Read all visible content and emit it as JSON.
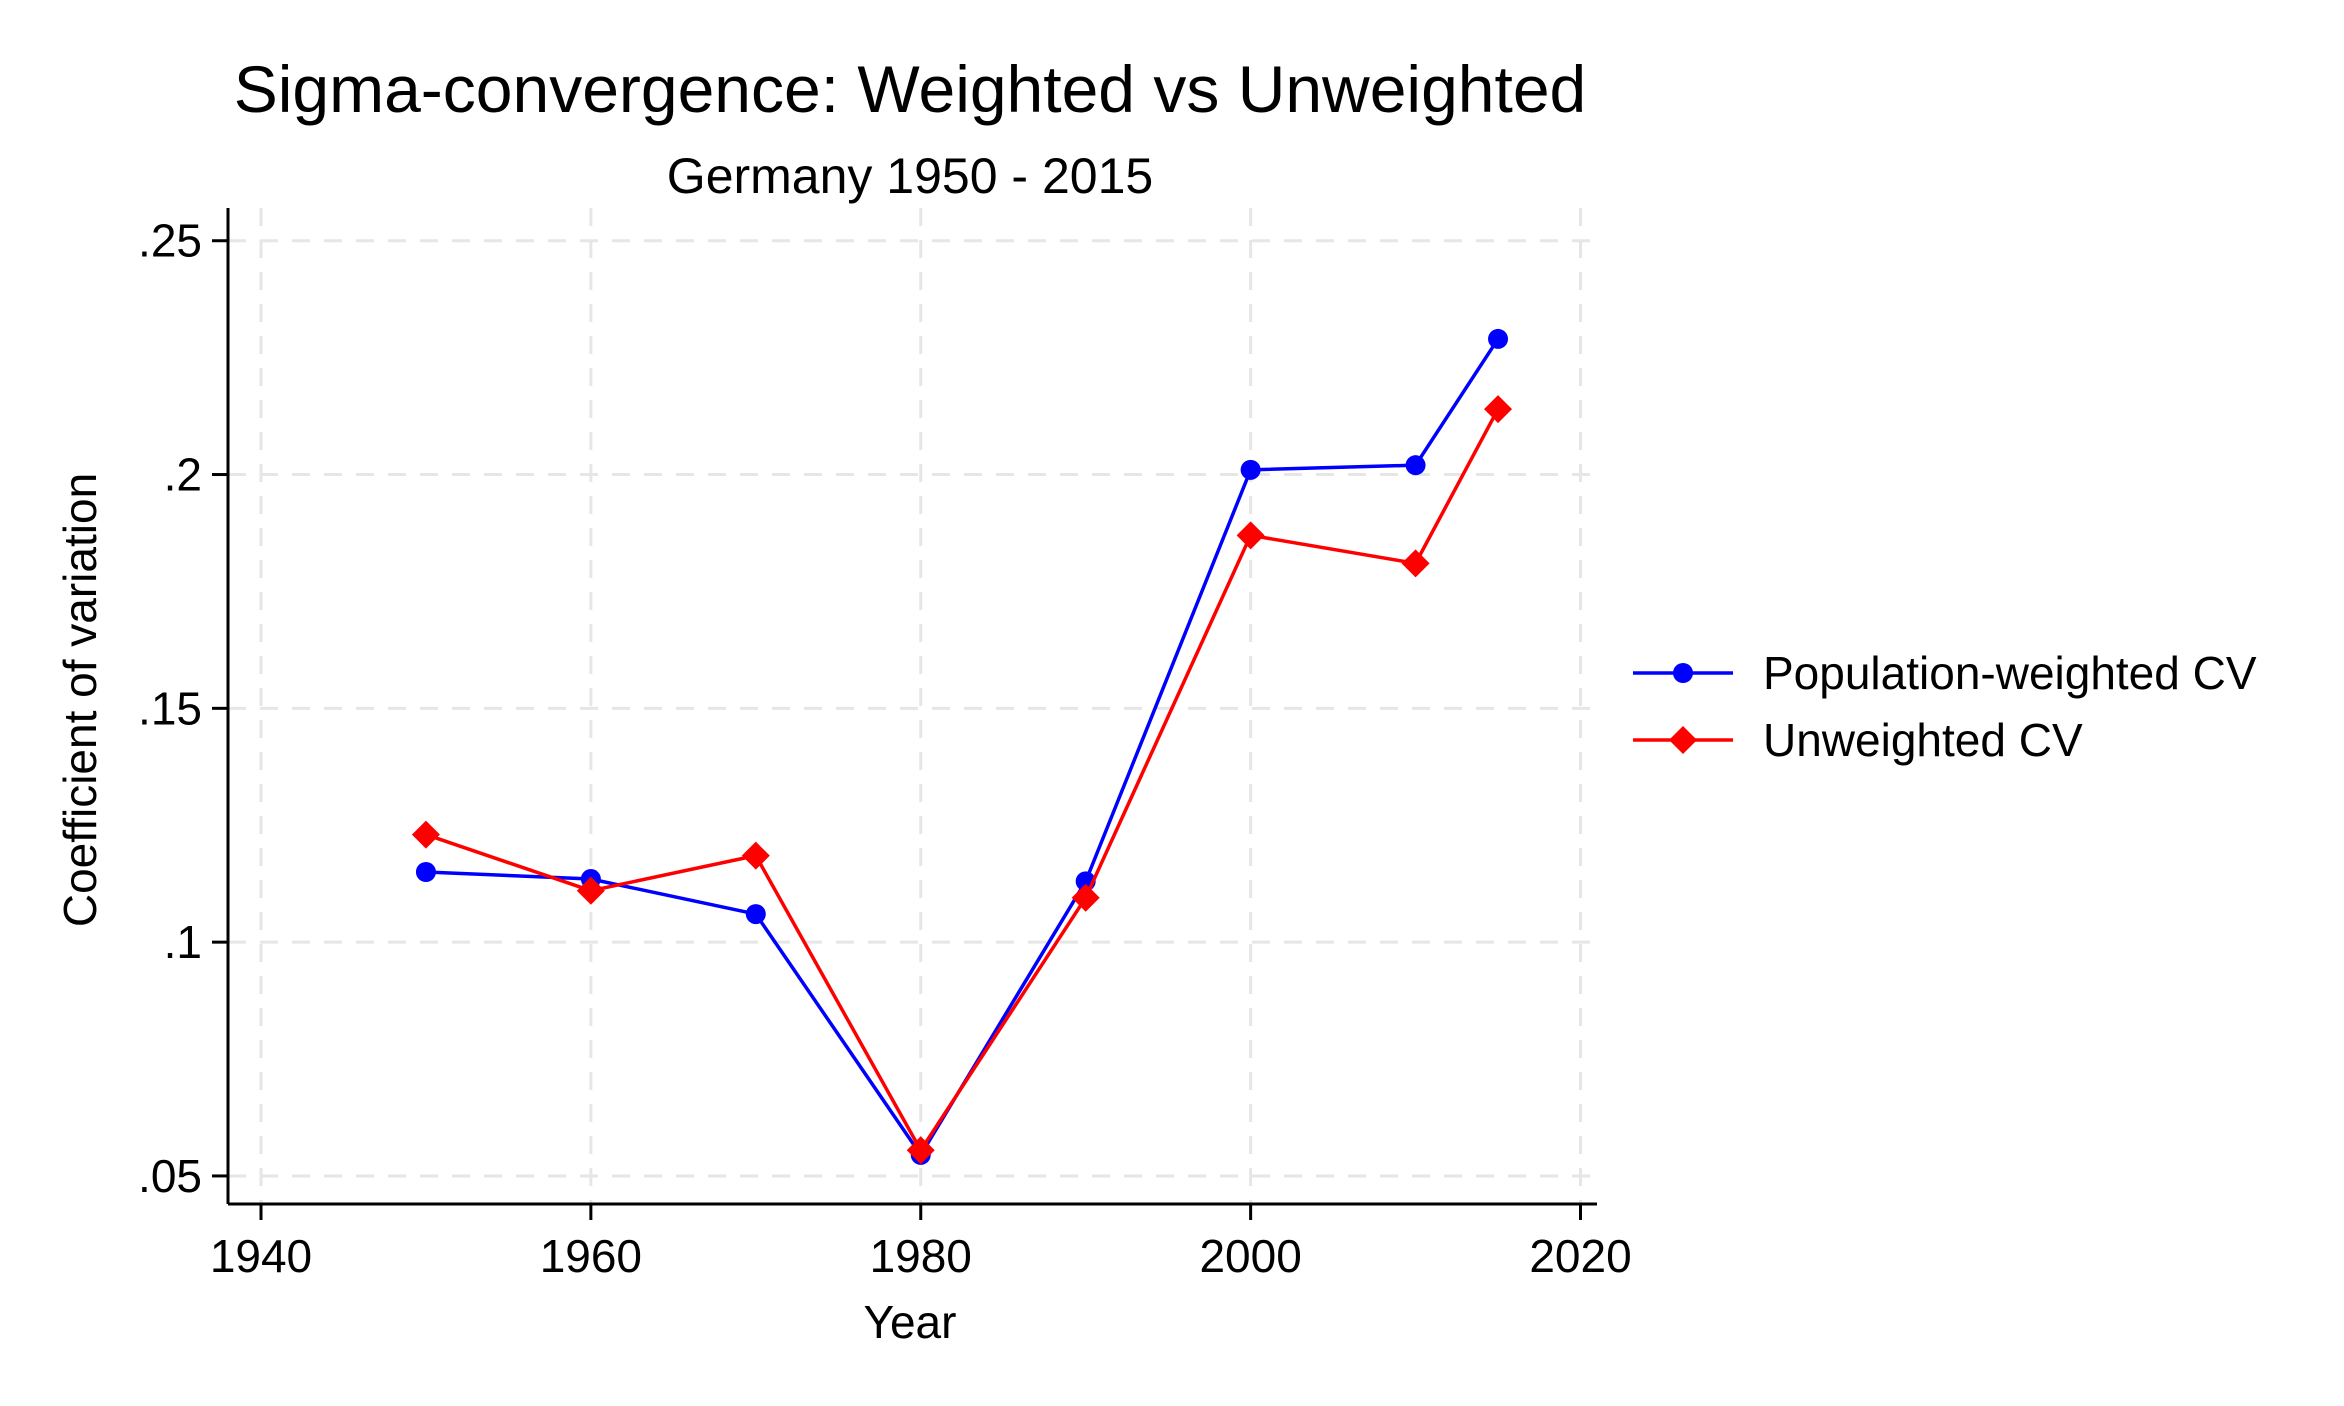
{
  "colors": {
    "series_1": "#0000ff",
    "series_2": "#ff0000",
    "grid": "#e6e6e6",
    "axis": "#000000"
  },
  "chart_data": {
    "type": "line",
    "title": "Sigma-convergence: Weighted vs Unweighted",
    "subtitle": "Germany 1950 - 2015",
    "xlabel": "Year",
    "ylabel": "Coefficient of variation",
    "xlim": [
      1938,
      2021
    ],
    "ylim": [
      0.044,
      0.257
    ],
    "xticks": [
      1940,
      1960,
      1980,
      2000,
      2020
    ],
    "xtick_labels": [
      "1940",
      "1960",
      "1980",
      "2000",
      "2020"
    ],
    "yticks": [
      0.05,
      0.1,
      0.15,
      0.2,
      0.25
    ],
    "ytick_labels": [
      ".05",
      ".1",
      ".15",
      ".2",
      ".25"
    ],
    "grid": true,
    "legend_position": "right",
    "series": [
      {
        "name": "Population-weighted CV",
        "marker": "circle",
        "color": "#0000ff",
        "x": [
          1950,
          1960,
          1970,
          1980,
          1990,
          2000,
          2010,
          2015
        ],
        "y": [
          0.115,
          0.1135,
          0.106,
          0.0545,
          0.113,
          0.201,
          0.202,
          0.229
        ]
      },
      {
        "name": "Unweighted CV",
        "marker": "diamond",
        "color": "#ff0000",
        "x": [
          1950,
          1960,
          1970,
          1980,
          1990,
          2000,
          2010,
          2015
        ],
        "y": [
          0.123,
          0.111,
          0.1185,
          0.0555,
          0.1095,
          0.187,
          0.181,
          0.214
        ]
      }
    ]
  }
}
